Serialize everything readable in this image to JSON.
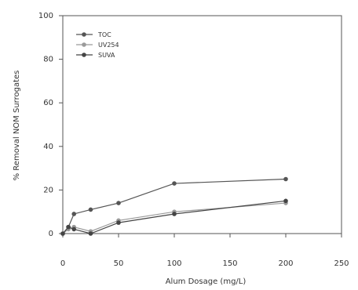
{
  "chart_data": {
    "type": "line",
    "xlabel": "Alum Dosage (mg/L)",
    "ylabel": "% Removal NOM Surrogates",
    "xlim": [
      0,
      250
    ],
    "ylim": [
      0,
      100
    ],
    "xticks": [
      0,
      50,
      100,
      150,
      200,
      250
    ],
    "yticks": [
      0,
      20,
      40,
      60,
      80,
      100
    ],
    "grid": false,
    "legend_position": "top-left",
    "series": [
      {
        "name": "TOC",
        "color": "#555555",
        "marker": "circle",
        "points": [
          [
            0,
            0
          ],
          [
            5,
            3
          ],
          [
            10,
            9
          ],
          [
            25,
            11
          ],
          [
            50,
            14
          ],
          [
            100,
            23
          ],
          [
            200,
            25
          ]
        ]
      },
      {
        "name": "UV254",
        "color": "#9a9a9a",
        "marker": "circle",
        "points": [
          [
            0,
            0
          ],
          [
            5,
            2
          ],
          [
            10,
            3
          ],
          [
            25,
            1
          ],
          [
            50,
            6
          ],
          [
            100,
            10
          ],
          [
            200,
            14
          ]
        ]
      },
      {
        "name": "SUVA",
        "color": "#444444",
        "marker": "circle",
        "points": [
          [
            0,
            0
          ],
          [
            5,
            3
          ],
          [
            10,
            2
          ],
          [
            25,
            0
          ],
          [
            50,
            5
          ],
          [
            100,
            9
          ],
          [
            200,
            15
          ]
        ]
      }
    ]
  }
}
